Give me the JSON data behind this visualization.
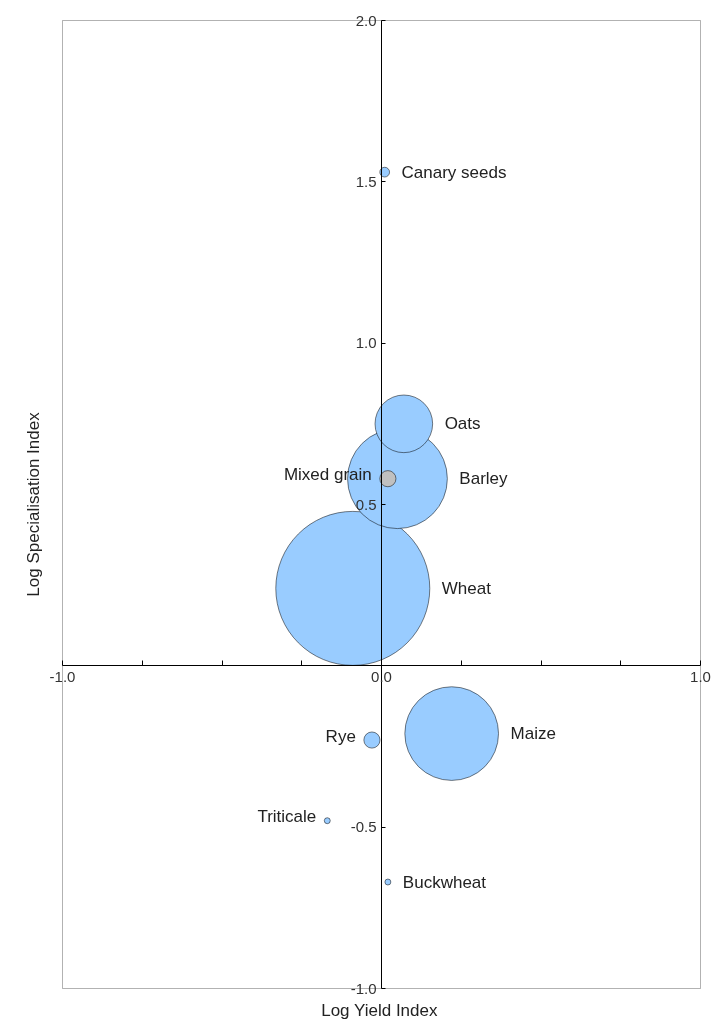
{
  "chart_data": {
    "type": "bubble",
    "xlabel": "Log Yield Index",
    "ylabel": "Log Specialisation Index",
    "xlim": [
      -1.0,
      1.0
    ],
    "ylim": [
      -1.0,
      2.0
    ],
    "xticks": [
      {
        "value": -1.0,
        "label": "-1.0"
      },
      {
        "value": -0.75,
        "label": null
      },
      {
        "value": -0.5,
        "label": null
      },
      {
        "value": -0.25,
        "label": null
      },
      {
        "value": 0,
        "label": "0.0"
      },
      {
        "value": 0.25,
        "label": null
      },
      {
        "value": 0.5,
        "label": null
      },
      {
        "value": 0.75,
        "label": null
      },
      {
        "value": 1.0,
        "label": "1.0"
      }
    ],
    "yticks": [
      {
        "value": -1.0,
        "label": "-1.0"
      },
      {
        "value": -0.5,
        "label": "-0.5"
      },
      {
        "value": 0.5,
        "label": "0.5"
      },
      {
        "value": 1.0,
        "label": "1.0"
      },
      {
        "value": 1.5,
        "label": "1.5"
      },
      {
        "value": 2.0,
        "label": "2.0"
      }
    ],
    "grid": false,
    "series": [
      {
        "name": "Wheat",
        "color": "#99ccff",
        "x": [
          -0.09
        ],
        "values": [
          0.24
        ],
        "sizes": [
          1
        ]
      },
      {
        "name": "Maize",
        "color": "#99ccff",
        "x": [
          0.22
        ],
        "values": [
          -0.21
        ],
        "sizes": [
          0.37
        ]
      },
      {
        "name": "Barley",
        "color": "#99ccff",
        "x": [
          0.05
        ],
        "values": [
          0.58
        ],
        "sizes": [
          0.42
        ]
      },
      {
        "name": "Oats",
        "color": "#99ccff",
        "x": [
          0.07
        ],
        "values": [
          0.75
        ],
        "sizes": [
          0.14
        ]
      },
      {
        "name": "Rye",
        "color": "#99ccff",
        "x": [
          -0.03
        ],
        "values": [
          -0.23
        ],
        "sizes": [
          0.011
        ]
      },
      {
        "name": "Mixed grain",
        "color": "#c0c0c0",
        "x": [
          0.02
        ],
        "values": [
          0.58
        ],
        "sizes": [
          0.011
        ]
      },
      {
        "name": "Canary seeds",
        "color": "#99ccff",
        "x": [
          0.01
        ],
        "values": [
          1.53
        ],
        "sizes": [
          0.004
        ]
      },
      {
        "name": "Triticale",
        "color": "#99ccff",
        "x": [
          -0.17
        ],
        "values": [
          -0.48
        ],
        "sizes": [
          0.0015
        ]
      },
      {
        "name": "Buckwheat",
        "color": "#99ccff",
        "x": [
          0.02
        ],
        "values": [
          -0.67
        ],
        "sizes": [
          0.0015
        ]
      }
    ]
  }
}
